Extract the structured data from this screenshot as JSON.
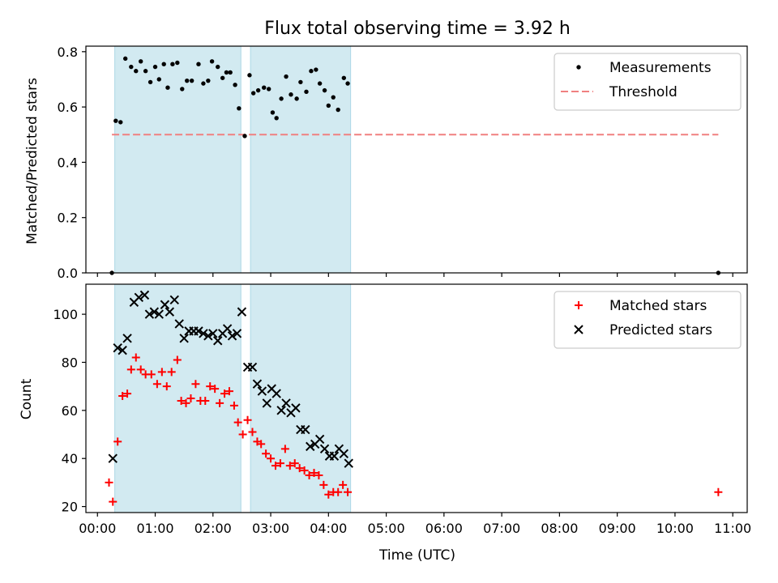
{
  "title": "Flux total observing time = 3.92 h",
  "xlabel": "Time (UTC)",
  "xticks": [
    "00:00",
    "01:00",
    "02:00",
    "03:00",
    "04:00",
    "05:00",
    "06:00",
    "07:00",
    "08:00",
    "09:00",
    "10:00",
    "11:00"
  ],
  "colors": {
    "band": "#add8e6",
    "threshold": "#f08080",
    "measurement": "#000000",
    "matched": "#ff0000",
    "predicted": "#000000"
  },
  "chart_data": [
    {
      "type": "scatter",
      "ylabel": "Matched/Predicted stars",
      "ylim": [
        0,
        0.82
      ],
      "xlim_hours": [
        -0.2,
        11.25
      ],
      "yticks": [
        "0.0",
        "0.2",
        "0.4",
        "0.6",
        "0.8"
      ],
      "legend_position": "top-right",
      "observing_windows_utc": [
        [
          "00:18",
          "02:29"
        ],
        [
          "02:39",
          "04:23"
        ]
      ],
      "threshold": {
        "name": "Threshold",
        "value": 0.5,
        "x_range": [
          "00:15",
          "10:45"
        ]
      },
      "series": [
        {
          "name": "Measurements",
          "marker": "dot",
          "points": [
            [
              "00:15",
              0.0
            ],
            [
              "00:19",
              0.55
            ],
            [
              "00:24",
              0.545
            ],
            [
              "00:29",
              0.775
            ],
            [
              "00:35",
              0.745
            ],
            [
              "00:40",
              0.73
            ],
            [
              "00:45",
              0.765
            ],
            [
              "00:50",
              0.73
            ],
            [
              "00:55",
              0.69
            ],
            [
              "01:00",
              0.745
            ],
            [
              "01:04",
              0.7
            ],
            [
              "01:09",
              0.755
            ],
            [
              "01:13",
              0.67
            ],
            [
              "01:18",
              0.755
            ],
            [
              "01:23",
              0.76
            ],
            [
              "01:28",
              0.665
            ],
            [
              "01:33",
              0.695
            ],
            [
              "01:38",
              0.695
            ],
            [
              "01:45",
              0.755
            ],
            [
              "01:50",
              0.685
            ],
            [
              "01:55",
              0.695
            ],
            [
              "01:59",
              0.765
            ],
            [
              "02:05",
              0.745
            ],
            [
              "02:10",
              0.705
            ],
            [
              "02:14",
              0.725
            ],
            [
              "02:18",
              0.725
            ],
            [
              "02:23",
              0.68
            ],
            [
              "02:27",
              0.595
            ],
            [
              "02:33",
              0.495
            ],
            [
              "02:38",
              0.715
            ],
            [
              "02:42",
              0.65
            ],
            [
              "02:47",
              0.66
            ],
            [
              "02:53",
              0.67
            ],
            [
              "02:58",
              0.665
            ],
            [
              "03:02",
              0.58
            ],
            [
              "03:06",
              0.56
            ],
            [
              "03:11",
              0.63
            ],
            [
              "03:16",
              0.71
            ],
            [
              "03:21",
              0.645
            ],
            [
              "03:27",
              0.63
            ],
            [
              "03:31",
              0.69
            ],
            [
              "03:37",
              0.655
            ],
            [
              "03:42",
              0.73
            ],
            [
              "03:47",
              0.735
            ],
            [
              "03:51",
              0.685
            ],
            [
              "03:56",
              0.66
            ],
            [
              "04:00",
              0.605
            ],
            [
              "04:05",
              0.635
            ],
            [
              "04:10",
              0.59
            ],
            [
              "04:16",
              0.705
            ],
            [
              "04:20",
              0.685
            ],
            [
              "10:45",
              0.0
            ]
          ]
        }
      ]
    },
    {
      "type": "scatter",
      "ylabel": "Count",
      "xlabel": "Time (UTC)",
      "ylim": [
        17.5,
        112.5
      ],
      "xlim_hours": [
        -0.2,
        11.25
      ],
      "yticks": [
        "20",
        "40",
        "60",
        "80",
        "100"
      ],
      "legend_position": "top-right",
      "observing_windows_utc": [
        [
          "00:18",
          "02:29"
        ],
        [
          "02:39",
          "04:23"
        ]
      ],
      "series": [
        {
          "name": "Matched stars",
          "marker": "plus",
          "points": [
            [
              "00:12",
              30
            ],
            [
              "00:16",
              22
            ],
            [
              "00:21",
              47
            ],
            [
              "00:26",
              66
            ],
            [
              "00:31",
              67
            ],
            [
              "00:35",
              77
            ],
            [
              "00:40",
              82
            ],
            [
              "00:45",
              77
            ],
            [
              "00:50",
              75
            ],
            [
              "00:56",
              75
            ],
            [
              "01:02",
              71
            ],
            [
              "01:07",
              76
            ],
            [
              "01:12",
              70
            ],
            [
              "01:17",
              76
            ],
            [
              "01:23",
              81
            ],
            [
              "01:27",
              64
            ],
            [
              "01:32",
              63
            ],
            [
              "01:37",
              65
            ],
            [
              "01:42",
              71
            ],
            [
              "01:47",
              64
            ],
            [
              "01:52",
              64
            ],
            [
              "01:57",
              70
            ],
            [
              "02:02",
              69
            ],
            [
              "02:07",
              63
            ],
            [
              "02:12",
              67
            ],
            [
              "02:17",
              68
            ],
            [
              "02:22",
              62
            ],
            [
              "02:26",
              55
            ],
            [
              "02:31",
              50
            ],
            [
              "02:36",
              56
            ],
            [
              "02:41",
              51
            ],
            [
              "02:46",
              47
            ],
            [
              "02:50",
              46
            ],
            [
              "02:55",
              42
            ],
            [
              "03:00",
              40
            ],
            [
              "03:05",
              37
            ],
            [
              "03:10",
              38
            ],
            [
              "03:15",
              44
            ],
            [
              "03:20",
              37
            ],
            [
              "03:25",
              38
            ],
            [
              "03:30",
              36
            ],
            [
              "03:35",
              35
            ],
            [
              "03:40",
              33
            ],
            [
              "03:45",
              34
            ],
            [
              "03:50",
              33
            ],
            [
              "03:55",
              29
            ],
            [
              "04:00",
              25
            ],
            [
              "04:05",
              26
            ],
            [
              "04:10",
              26
            ],
            [
              "04:15",
              29
            ],
            [
              "04:20",
              26
            ],
            [
              "10:45",
              26
            ]
          ]
        },
        {
          "name": "Predicted stars",
          "marker": "cross",
          "points": [
            [
              "00:16",
              40
            ],
            [
              "00:21",
              86
            ],
            [
              "00:26",
              85
            ],
            [
              "00:31",
              90
            ],
            [
              "00:38",
              105
            ],
            [
              "00:43",
              107
            ],
            [
              "00:49",
              108
            ],
            [
              "00:54",
              100
            ],
            [
              "00:59",
              101
            ],
            [
              "01:04",
              100
            ],
            [
              "01:10",
              104
            ],
            [
              "01:15",
              101
            ],
            [
              "01:20",
              106
            ],
            [
              "01:25",
              96
            ],
            [
              "01:30",
              90
            ],
            [
              "01:35",
              93
            ],
            [
              "01:40",
              93
            ],
            [
              "01:45",
              93
            ],
            [
              "01:50",
              92
            ],
            [
              "01:55",
              91
            ],
            [
              "02:00",
              92
            ],
            [
              "02:05",
              89
            ],
            [
              "02:10",
              92
            ],
            [
              "02:15",
              94
            ],
            [
              "02:20",
              91
            ],
            [
              "02:25",
              92
            ],
            [
              "02:30",
              101
            ],
            [
              "02:36",
              78
            ],
            [
              "02:41",
              78
            ],
            [
              "02:46",
              71
            ],
            [
              "02:51",
              68
            ],
            [
              "02:56",
              63
            ],
            [
              "03:01",
              69
            ],
            [
              "03:06",
              67
            ],
            [
              "03:11",
              60
            ],
            [
              "03:16",
              63
            ],
            [
              "03:21",
              59
            ],
            [
              "03:26",
              61
            ],
            [
              "03:31",
              52
            ],
            [
              "03:36",
              52
            ],
            [
              "03:41",
              45
            ],
            [
              "03:46",
              46
            ],
            [
              "03:51",
              48
            ],
            [
              "03:56",
              44
            ],
            [
              "04:01",
              41
            ],
            [
              "04:06",
              41
            ],
            [
              "04:11",
              44
            ],
            [
              "04:16",
              42
            ],
            [
              "04:21",
              38
            ]
          ]
        }
      ]
    }
  ]
}
